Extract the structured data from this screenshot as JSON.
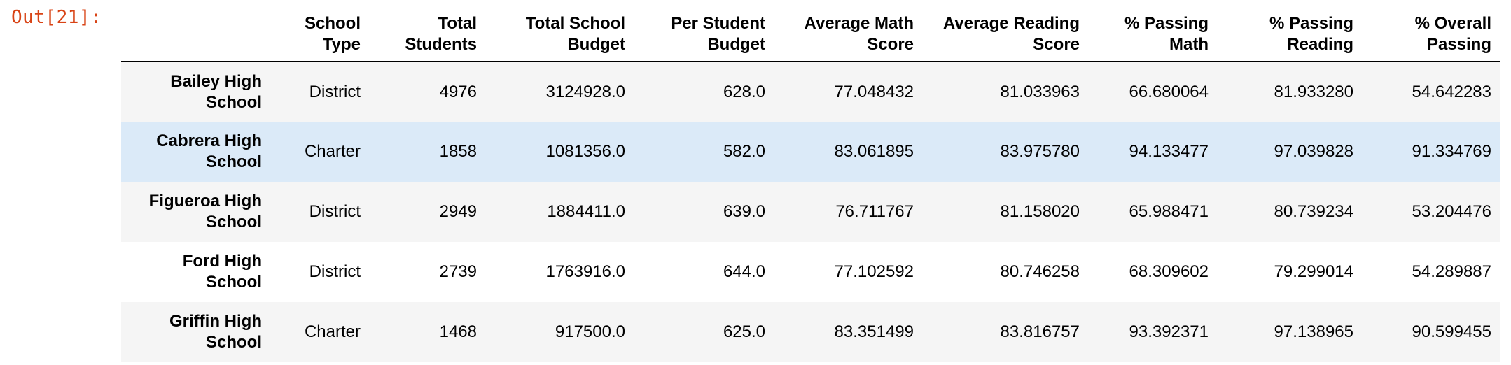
{
  "output_prompt": "Out[21]:",
  "table": {
    "index_header": "",
    "columns": [
      [
        "School",
        "Type"
      ],
      [
        "Total",
        "Students"
      ],
      [
        "Total School",
        "Budget"
      ],
      [
        "Per Student",
        "Budget"
      ],
      [
        "Average Math",
        "Score"
      ],
      [
        "Average Reading",
        "Score"
      ],
      [
        "% Passing",
        "Math"
      ],
      [
        "% Passing",
        "Reading"
      ],
      [
        "% Overall",
        "Passing"
      ]
    ],
    "rows": [
      {
        "index": [
          "Bailey High",
          "School"
        ],
        "cells": [
          "District",
          "4976",
          "3124928.0",
          "628.0",
          "77.048432",
          "81.033963",
          "66.680064",
          "81.933280",
          "54.642283"
        ],
        "highlighted": false
      },
      {
        "index": [
          "Cabrera High",
          "School"
        ],
        "cells": [
          "Charter",
          "1858",
          "1081356.0",
          "582.0",
          "83.061895",
          "83.975780",
          "94.133477",
          "97.039828",
          "91.334769"
        ],
        "highlighted": true
      },
      {
        "index": [
          "Figueroa High",
          "School"
        ],
        "cells": [
          "District",
          "2949",
          "1884411.0",
          "639.0",
          "76.711767",
          "81.158020",
          "65.988471",
          "80.739234",
          "53.204476"
        ],
        "highlighted": false
      },
      {
        "index": [
          "Ford High",
          "School"
        ],
        "cells": [
          "District",
          "2739",
          "1763916.0",
          "644.0",
          "77.102592",
          "80.746258",
          "68.309602",
          "79.299014",
          "54.289887"
        ],
        "highlighted": false
      },
      {
        "index": [
          "Griffin High",
          "School"
        ],
        "cells": [
          "Charter",
          "1468",
          "917500.0",
          "625.0",
          "83.351499",
          "83.816757",
          "93.392371",
          "97.138965",
          "90.599455"
        ],
        "highlighted": false
      }
    ]
  },
  "colors": {
    "prompt": "#d84315",
    "row_stripe": "#f5f5f5",
    "row_hover": "#dbeaf8"
  }
}
